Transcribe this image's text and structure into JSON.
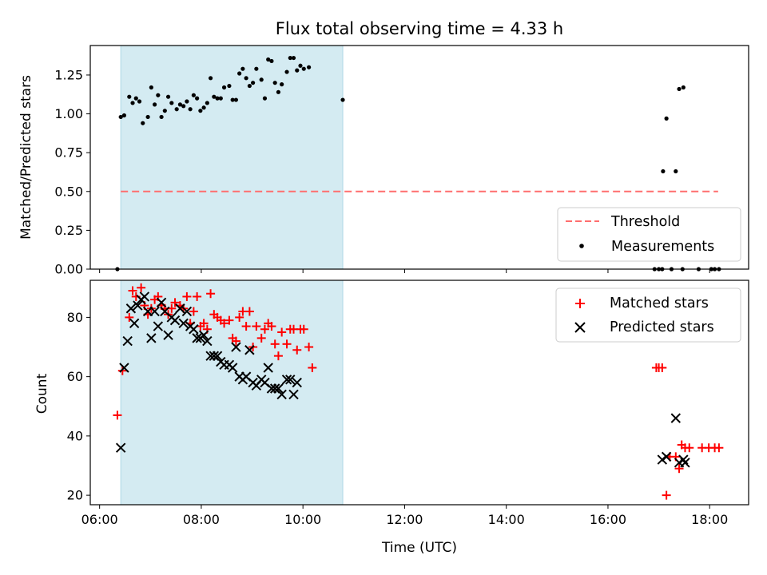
{
  "title": "Flux total observing time = 4.33 h",
  "colors": {
    "matched": "#ff0000",
    "predicted": "#000000",
    "threshold": "#ff6e6e",
    "measurement": "#000000",
    "span": "#add8e6"
  },
  "chart_data": [
    {
      "type": "scatter",
      "panel": "top",
      "ylabel": "Matched/Predicted stars",
      "xlabel": "",
      "xlim": [
        "05:49",
        "18:46"
      ],
      "ylim": [
        0,
        1.44
      ],
      "yticks": [
        "0.00",
        "0.25",
        "0.50",
        "0.75",
        "1.00",
        "1.25"
      ],
      "ytick_values": [
        0,
        0.25,
        0.5,
        0.75,
        1.0,
        1.25
      ],
      "shaded_span": [
        "06:25",
        "10:47"
      ],
      "legend_position": "lower right",
      "series": [
        {
          "name": "Threshold",
          "kind": "dashed-line",
          "x": [
            "06:25",
            "18:10"
          ],
          "y": [
            0.5,
            0.5
          ]
        },
        {
          "name": "Measurements",
          "kind": "dots",
          "points": [
            [
              "06:21",
              0.0
            ],
            [
              "06:25",
              0.98
            ],
            [
              "06:29",
              0.99
            ],
            [
              "06:35",
              1.11
            ],
            [
              "06:39",
              1.07
            ],
            [
              "06:43",
              1.1
            ],
            [
              "06:47",
              1.08
            ],
            [
              "06:51",
              0.94
            ],
            [
              "06:57",
              0.98
            ],
            [
              "07:01",
              1.17
            ],
            [
              "07:05",
              1.06
            ],
            [
              "07:09",
              1.12
            ],
            [
              "07:13",
              0.98
            ],
            [
              "07:17",
              1.02
            ],
            [
              "07:21",
              1.11
            ],
            [
              "07:25",
              1.07
            ],
            [
              "07:31",
              1.03
            ],
            [
              "07:35",
              1.06
            ],
            [
              "07:39",
              1.05
            ],
            [
              "07:43",
              1.08
            ],
            [
              "07:47",
              1.03
            ],
            [
              "07:51",
              1.12
            ],
            [
              "07:55",
              1.1
            ],
            [
              "07:59",
              1.02
            ],
            [
              "08:03",
              1.04
            ],
            [
              "08:07",
              1.07
            ],
            [
              "08:11",
              1.23
            ],
            [
              "08:15",
              1.11
            ],
            [
              "08:19",
              1.1
            ],
            [
              "08:23",
              1.1
            ],
            [
              "08:27",
              1.17
            ],
            [
              "08:33",
              1.18
            ],
            [
              "08:37",
              1.09
            ],
            [
              "08:41",
              1.09
            ],
            [
              "08:45",
              1.26
            ],
            [
              "08:49",
              1.29
            ],
            [
              "08:53",
              1.23
            ],
            [
              "08:57",
              1.18
            ],
            [
              "09:01",
              1.2
            ],
            [
              "09:05",
              1.29
            ],
            [
              "09:11",
              1.22
            ],
            [
              "09:15",
              1.1
            ],
            [
              "09:19",
              1.35
            ],
            [
              "09:23",
              1.34
            ],
            [
              "09:27",
              1.2
            ],
            [
              "09:31",
              1.14
            ],
            [
              "09:35",
              1.19
            ],
            [
              "09:41",
              1.27
            ],
            [
              "09:45",
              1.36
            ],
            [
              "09:49",
              1.36
            ],
            [
              "09:53",
              1.28
            ],
            [
              "09:57",
              1.31
            ],
            [
              "10:01",
              1.29
            ],
            [
              "10:07",
              1.3
            ],
            [
              "10:47",
              1.09
            ],
            [
              "16:55",
              0.0
            ],
            [
              "17:00",
              0.0
            ],
            [
              "17:04",
              0.0
            ],
            [
              "17:05",
              0.63
            ],
            [
              "17:09",
              0.97
            ],
            [
              "17:15",
              0.0
            ],
            [
              "17:20",
              0.63
            ],
            [
              "17:24",
              1.16
            ],
            [
              "17:29",
              1.17
            ],
            [
              "17:28",
              0.0
            ],
            [
              "17:47",
              0.0
            ],
            [
              "18:02",
              0.0
            ],
            [
              "18:06",
              0.0
            ],
            [
              "18:11",
              0.0
            ]
          ]
        }
      ]
    },
    {
      "type": "scatter",
      "panel": "bottom",
      "ylabel": "Count",
      "xlabel": "Time (UTC)",
      "xlim": [
        "05:49",
        "18:46"
      ],
      "ylim": [
        16.8,
        92.5
      ],
      "xticks": [
        "06:00",
        "08:00",
        "10:00",
        "12:00",
        "14:00",
        "16:00",
        "18:00"
      ],
      "yticks": [
        "20",
        "40",
        "60",
        "80"
      ],
      "ytick_values": [
        20,
        40,
        60,
        80
      ],
      "shaded_span": [
        "06:25",
        "10:47"
      ],
      "legend_position": "upper right",
      "series": [
        {
          "name": "Matched stars",
          "marker": "plus",
          "points": [
            [
              "06:21",
              47
            ],
            [
              "06:27",
              62
            ],
            [
              "06:35",
              80
            ],
            [
              "06:39",
              89
            ],
            [
              "06:43",
              87
            ],
            [
              "06:49",
              90
            ],
            [
              "06:53",
              84
            ],
            [
              "06:57",
              81
            ],
            [
              "07:01",
              83
            ],
            [
              "07:05",
              86
            ],
            [
              "07:09",
              87
            ],
            [
              "07:13",
              84
            ],
            [
              "07:17",
              83
            ],
            [
              "07:21",
              81
            ],
            [
              "07:25",
              83
            ],
            [
              "07:29",
              85
            ],
            [
              "07:35",
              84
            ],
            [
              "07:39",
              83
            ],
            [
              "07:43",
              87
            ],
            [
              "07:47",
              78
            ],
            [
              "07:51",
              82
            ],
            [
              "07:55",
              87
            ],
            [
              "07:59",
              77
            ],
            [
              "08:03",
              78
            ],
            [
              "08:07",
              76
            ],
            [
              "08:11",
              88
            ],
            [
              "08:15",
              81
            ],
            [
              "08:19",
              80
            ],
            [
              "08:23",
              79
            ],
            [
              "08:27",
              78
            ],
            [
              "08:33",
              79
            ],
            [
              "08:37",
              73
            ],
            [
              "08:41",
              72
            ],
            [
              "08:45",
              80
            ],
            [
              "08:49",
              82
            ],
            [
              "08:53",
              77
            ],
            [
              "08:57",
              82
            ],
            [
              "09:01",
              70
            ],
            [
              "09:05",
              77
            ],
            [
              "09:11",
              73
            ],
            [
              "09:15",
              76
            ],
            [
              "09:19",
              78
            ],
            [
              "09:23",
              77
            ],
            [
              "09:27",
              71
            ],
            [
              "09:31",
              67
            ],
            [
              "09:35",
              75
            ],
            [
              "09:41",
              71
            ],
            [
              "09:45",
              76
            ],
            [
              "09:49",
              76
            ],
            [
              "09:53",
              69
            ],
            [
              "09:57",
              76
            ],
            [
              "10:01",
              76
            ],
            [
              "10:07",
              70
            ],
            [
              "10:11",
              63
            ],
            [
              "16:57",
              63
            ],
            [
              "17:00",
              63
            ],
            [
              "17:04",
              63
            ],
            [
              "17:09",
              20
            ],
            [
              "17:13",
              33
            ],
            [
              "17:20",
              33
            ],
            [
              "17:24",
              29
            ],
            [
              "17:27",
              37
            ],
            [
              "17:31",
              36
            ],
            [
              "17:36",
              36
            ],
            [
              "17:51",
              36
            ],
            [
              "17:59",
              36
            ],
            [
              "18:06",
              36
            ],
            [
              "18:11",
              36
            ]
          ]
        },
        {
          "name": "Predicted stars",
          "marker": "x",
          "points": [
            [
              "06:25",
              36
            ],
            [
              "06:29",
              63
            ],
            [
              "06:33",
              72
            ],
            [
              "06:37",
              83
            ],
            [
              "06:41",
              78
            ],
            [
              "06:45",
              84
            ],
            [
              "06:49",
              86
            ],
            [
              "06:53",
              87
            ],
            [
              "06:57",
              82
            ],
            [
              "07:01",
              73
            ],
            [
              "07:05",
              82
            ],
            [
              "07:09",
              77
            ],
            [
              "07:13",
              85
            ],
            [
              "07:17",
              82
            ],
            [
              "07:21",
              74
            ],
            [
              "07:25",
              80
            ],
            [
              "07:29",
              79
            ],
            [
              "07:35",
              83
            ],
            [
              "07:39",
              78
            ],
            [
              "07:43",
              82
            ],
            [
              "07:47",
              77
            ],
            [
              "07:51",
              76
            ],
            [
              "07:55",
              73
            ],
            [
              "07:59",
              73
            ],
            [
              "08:03",
              74
            ],
            [
              "08:07",
              72
            ],
            [
              "08:11",
              67
            ],
            [
              "08:15",
              67
            ],
            [
              "08:19",
              67
            ],
            [
              "08:23",
              65
            ],
            [
              "08:27",
              64
            ],
            [
              "08:33",
              64
            ],
            [
              "08:37",
              63
            ],
            [
              "08:41",
              70
            ],
            [
              "08:45",
              60
            ],
            [
              "08:49",
              59
            ],
            [
              "08:53",
              60
            ],
            [
              "08:57",
              69
            ],
            [
              "09:01",
              58
            ],
            [
              "09:05",
              57
            ],
            [
              "09:11",
              59
            ],
            [
              "09:15",
              58
            ],
            [
              "09:19",
              63
            ],
            [
              "09:23",
              56
            ],
            [
              "09:27",
              56
            ],
            [
              "09:31",
              56
            ],
            [
              "09:35",
              54
            ],
            [
              "09:41",
              59
            ],
            [
              "09:45",
              59
            ],
            [
              "09:49",
              54
            ],
            [
              "09:53",
              58
            ],
            [
              "17:04",
              32
            ],
            [
              "17:09",
              33
            ],
            [
              "17:20",
              46
            ],
            [
              "17:24",
              31
            ],
            [
              "17:29",
              32
            ],
            [
              "17:31",
              31
            ]
          ]
        }
      ]
    }
  ],
  "legend": {
    "threshold": "Threshold",
    "measurements": "Measurements",
    "matched": "Matched stars",
    "predicted": "Predicted stars"
  }
}
